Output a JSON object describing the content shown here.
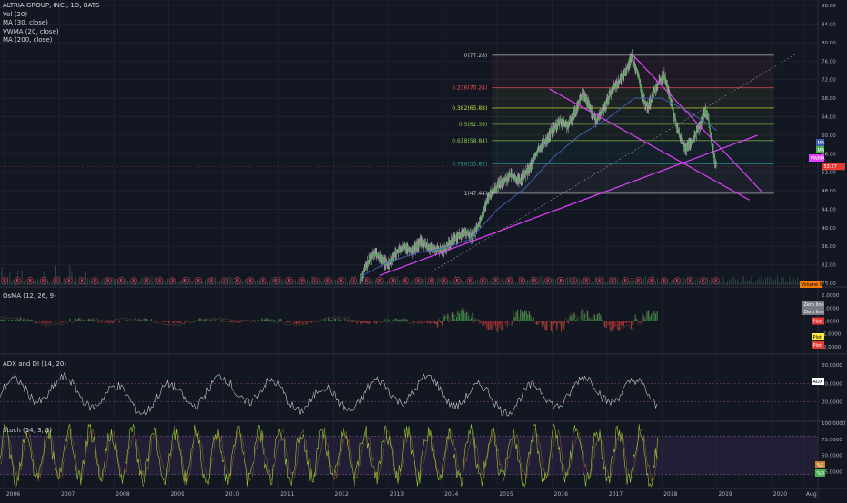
{
  "legend": {
    "title": "ALTRIA GROUP, INC., 1D, BATS",
    "lines": [
      "Vol (20)",
      "MA (30, close)",
      "VWMA (20, close)",
      "MA (200, close)"
    ]
  },
  "panes": {
    "osma_title": "OsMA (12, 26, 9)",
    "adx_title": "ADX and DI (14, 20)",
    "stoch_title": "Stoch (14, 3, 3)"
  },
  "colors": {
    "background": "#131722",
    "price": "#c0c0c0",
    "ma30": "#4caf50",
    "ma200": "#3f5fb0",
    "pink": "#e040fb",
    "fib_red": "#ef5350",
    "fib_yellow": "#cddc39",
    "fib_green": "#8bc34a",
    "fib_teal": "#26a69a",
    "osma_up": "#4caf50",
    "osma_down": "#e53935",
    "stoch_k": "#9acd32"
  },
  "chart_data": {
    "type": "line",
    "x_axis": {
      "labels": [
        "2006",
        "2007",
        "2008",
        "2009",
        "2010",
        "2011",
        "2012",
        "2013",
        "2014",
        "2015",
        "2016",
        "2017",
        "2018",
        "2019",
        "2020",
        "Aug"
      ]
    },
    "main_pane": {
      "y_ticks": [
        "88.00",
        "84.00",
        "80.00",
        "76.00",
        "72.00",
        "68.00",
        "64.00",
        "60.00",
        "56.00",
        "52.00",
        "48.00",
        "44.00",
        "40.00",
        "36.00",
        "32.00",
        "28.00"
      ],
      "ylim": [
        28,
        90
      ],
      "current_price_label": "53.27",
      "current_price": 53.27,
      "series_labels": [
        "MA",
        "MA",
        "VWMA"
      ],
      "volume_label": "Volume MA",
      "price_series": [
        [
          2012.5,
          29
        ],
        [
          2012.6,
          31.5
        ],
        [
          2012.75,
          35
        ],
        [
          2012.85,
          33.5
        ],
        [
          2013.0,
          32
        ],
        [
          2013.1,
          34
        ],
        [
          2013.3,
          36
        ],
        [
          2013.45,
          35
        ],
        [
          2013.6,
          37
        ],
        [
          2013.8,
          35.5
        ],
        [
          2014.0,
          35
        ],
        [
          2014.2,
          37.5
        ],
        [
          2014.4,
          39
        ],
        [
          2014.55,
          38
        ],
        [
          2014.7,
          42
        ],
        [
          2014.85,
          47
        ],
        [
          2015.0,
          49
        ],
        [
          2015.1,
          50
        ],
        [
          2015.25,
          51.5
        ],
        [
          2015.4,
          50
        ],
        [
          2015.6,
          53
        ],
        [
          2015.75,
          57
        ],
        [
          2015.9,
          59
        ],
        [
          2016.0,
          61
        ],
        [
          2016.15,
          63
        ],
        [
          2016.3,
          62
        ],
        [
          2016.45,
          66
        ],
        [
          2016.55,
          69
        ],
        [
          2016.65,
          67
        ],
        [
          2016.8,
          63
        ],
        [
          2016.95,
          66
        ],
        [
          2017.1,
          70
        ],
        [
          2017.25,
          72
        ],
        [
          2017.35,
          74
        ],
        [
          2017.45,
          77
        ],
        [
          2017.55,
          74
        ],
        [
          2017.65,
          68
        ],
        [
          2017.75,
          66
        ],
        [
          2017.85,
          69
        ],
        [
          2017.95,
          71.5
        ],
        [
          2018.05,
          73
        ],
        [
          2018.15,
          68
        ],
        [
          2018.25,
          63
        ],
        [
          2018.35,
          59
        ],
        [
          2018.45,
          57
        ],
        [
          2018.55,
          58.5
        ],
        [
          2018.65,
          61
        ],
        [
          2018.72,
          62.5
        ],
        [
          2018.8,
          65.5
        ],
        [
          2018.86,
          63
        ],
        [
          2018.92,
          58
        ],
        [
          2018.97,
          54.5
        ],
        [
          2019.0,
          53.27
        ]
      ],
      "ma_series": [
        [
          2012.5,
          29.5
        ],
        [
          2013.0,
          32.5
        ],
        [
          2013.5,
          34.5
        ],
        [
          2014.0,
          35.5
        ],
        [
          2014.5,
          37.5
        ],
        [
          2015.0,
          44
        ],
        [
          2015.5,
          48.5
        ],
        [
          2016.0,
          55
        ],
        [
          2016.5,
          60
        ],
        [
          2017.0,
          63.5
        ],
        [
          2017.5,
          68
        ],
        [
          2018.0,
          68
        ],
        [
          2018.5,
          65
        ],
        [
          2018.9,
          62
        ],
        [
          2019.0,
          61
        ]
      ],
      "fib_levels": [
        {
          "label": "0(77.28)",
          "value": 77.28
        },
        {
          "label": "0.236(70.24)",
          "value": 70.24
        },
        {
          "label": "0.382(65.88)",
          "value": 65.88
        },
        {
          "label": "0.5(62.36)",
          "value": 62.36
        },
        {
          "label": "0.618(58.84)",
          "value": 58.84
        },
        {
          "label": "0.786(53.82)",
          "value": 53.82
        },
        {
          "label": "1(47.44)",
          "value": 47.44
        }
      ],
      "trendlines": [
        {
          "from": [
            2012.85,
            29.7
          ],
          "to": [
            2019.75,
            60
          ]
        },
        {
          "from": [
            2017.45,
            77.6
          ],
          "to": [
            2019.85,
            47.5
          ]
        },
        {
          "from": [
            2015.95,
            70
          ],
          "to": [
            2019.6,
            46
          ]
        },
        {
          "from": [
            2013.8,
            30.5
          ],
          "to": [
            2020.45,
            77.6
          ]
        }
      ],
      "event_label": "E",
      "event_count": 55
    },
    "osma": {
      "y_ticks": [
        "2.0000",
        "1.0000",
        "0.0000",
        "-1.0000",
        "-2.0000"
      ],
      "ylim": [
        -2.5,
        2.5
      ],
      "labels": [
        "Zero line",
        "Zero line",
        "Plot",
        "Plot",
        "Plot"
      ]
    },
    "adx": {
      "y_ticks": [
        "60.0000",
        "40.0000",
        "20.0000"
      ],
      "ylim": [
        0,
        70
      ],
      "labels": [
        "ADX"
      ]
    },
    "stoch": {
      "y_ticks": [
        "100.0000",
        "75.0000",
        "50.0000",
        "25.0000"
      ],
      "ylim": [
        0,
        100
      ],
      "labels": [
        "%K",
        "%D"
      ]
    }
  }
}
